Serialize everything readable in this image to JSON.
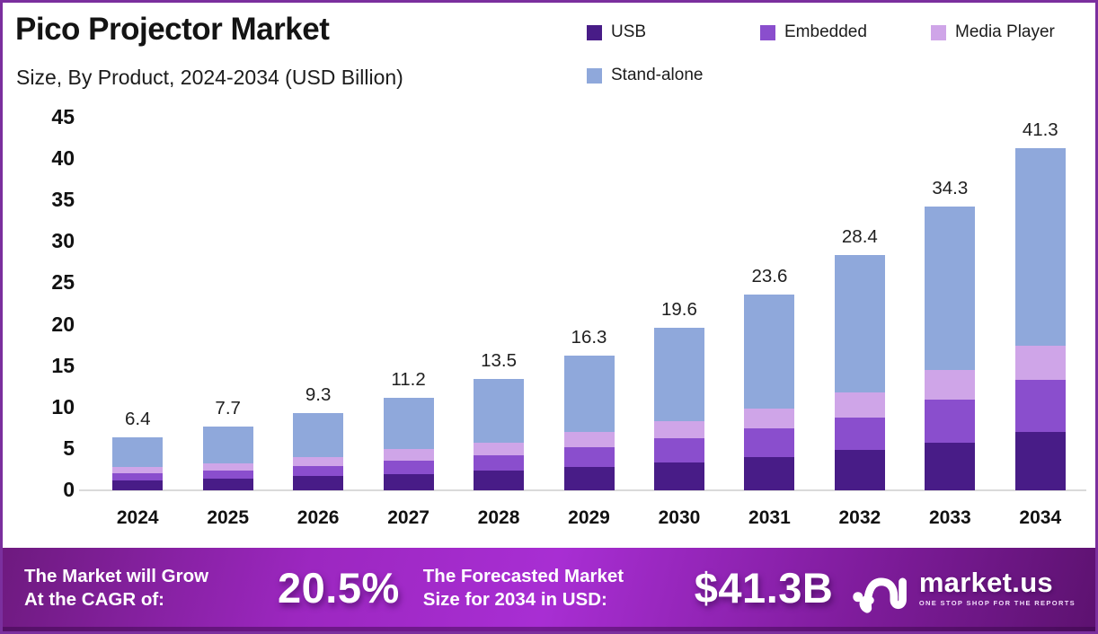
{
  "title": "Pico Projector Market",
  "subtitle": "Size, By Product, 2024-2034 (USD Billion)",
  "chart_data": {
    "type": "bar",
    "stacked": true,
    "title": "Pico Projector Market",
    "subtitle": "Size, By Product, 2024-2034 (USD Billion)",
    "unit": "USD Billion",
    "categories": [
      "2024",
      "2025",
      "2026",
      "2027",
      "2028",
      "2029",
      "2030",
      "2031",
      "2032",
      "2033",
      "2034"
    ],
    "series": [
      {
        "name": "USB",
        "color": "#481c87",
        "values": [
          1.2,
          1.4,
          1.7,
          2.0,
          2.4,
          2.8,
          3.4,
          4.0,
          4.9,
          5.8,
          7.0
        ]
      },
      {
        "name": "Embedded",
        "color": "#8a4ecd",
        "values": [
          0.9,
          1.0,
          1.2,
          1.6,
          1.8,
          2.4,
          2.9,
          3.5,
          3.9,
          5.2,
          6.3
        ]
      },
      {
        "name": "Media Player",
        "color": "#cfa5e8",
        "values": [
          0.7,
          0.9,
          1.1,
          1.4,
          1.5,
          1.8,
          2.0,
          2.4,
          3.0,
          3.5,
          4.2
        ]
      },
      {
        "name": "Stand-alone",
        "color": "#8fa8db",
        "values": [
          3.6,
          4.4,
          5.3,
          6.2,
          7.8,
          9.3,
          11.3,
          13.7,
          16.6,
          19.8,
          23.8
        ]
      }
    ],
    "totals": [
      6.4,
      7.7,
      9.3,
      11.2,
      13.5,
      16.3,
      19.6,
      23.6,
      28.4,
      34.3,
      41.3
    ],
    "ylim": [
      0,
      45
    ],
    "yticks": [
      0,
      5,
      10,
      15,
      20,
      25,
      30,
      35,
      40,
      45
    ],
    "grid": false,
    "legend_position": "top-right"
  },
  "banner": {
    "growth_label_line1": "The Market will Grow",
    "growth_label_line2": "At the CAGR of:",
    "cagr_value": "20.5%",
    "forecast_label_line1": "The Forecasted Market",
    "forecast_label_line2": "Size for 2034 in USD:",
    "forecast_value": "$41.3B",
    "brand_name": "market.us",
    "brand_tagline": "ONE STOP SHOP FOR THE REPORTS"
  },
  "colors": {
    "frame_border": "#7b2f9e",
    "axis_line": "#dadada",
    "banner_gradient": [
      "#6e1a7f",
      "#9c27c0",
      "#a82ed3",
      "#7f1c9c",
      "#5d1270"
    ],
    "text_dark": "#141414",
    "banner_text": "#ffffff"
  }
}
